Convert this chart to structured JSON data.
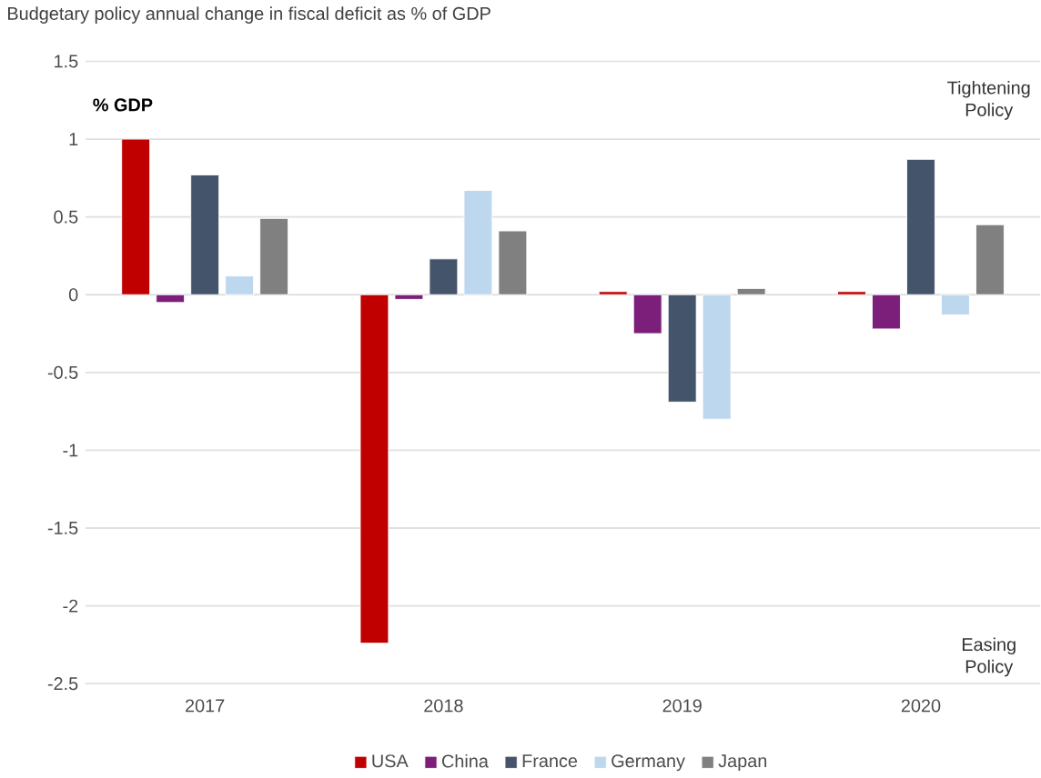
{
  "chart_data": {
    "type": "bar",
    "title": "Budgetary policy annual change in fiscal deficit as % of GDP",
    "ylabel": "% GDP",
    "categories": [
      "2017",
      "2018",
      "2019",
      "2020"
    ],
    "series": [
      {
        "name": "USA",
        "color": "#c00000",
        "values": [
          1.0,
          -2.24,
          0.02,
          0.02
        ]
      },
      {
        "name": "China",
        "color": "#7b1f7b",
        "values": [
          -0.05,
          -0.03,
          -0.25,
          -0.22
        ]
      },
      {
        "name": "France",
        "color": "#44546a",
        "values": [
          0.77,
          0.23,
          -0.69,
          0.87
        ]
      },
      {
        "name": "Germany",
        "color": "#bdd7ee",
        "values": [
          0.12,
          0.67,
          -0.8,
          -0.13
        ]
      },
      {
        "name": "Japan",
        "color": "#808080",
        "values": [
          0.49,
          0.41,
          0.04,
          0.45
        ]
      }
    ],
    "ylim": [
      -2.5,
      1.5
    ],
    "yticks": [
      -2.5,
      -2,
      -1.5,
      -1,
      -0.5,
      0,
      0.5,
      1,
      1.5
    ],
    "grid": "y",
    "legend": "bottom",
    "annotations": [
      "Tightening Policy",
      "Easing Policy"
    ]
  }
}
